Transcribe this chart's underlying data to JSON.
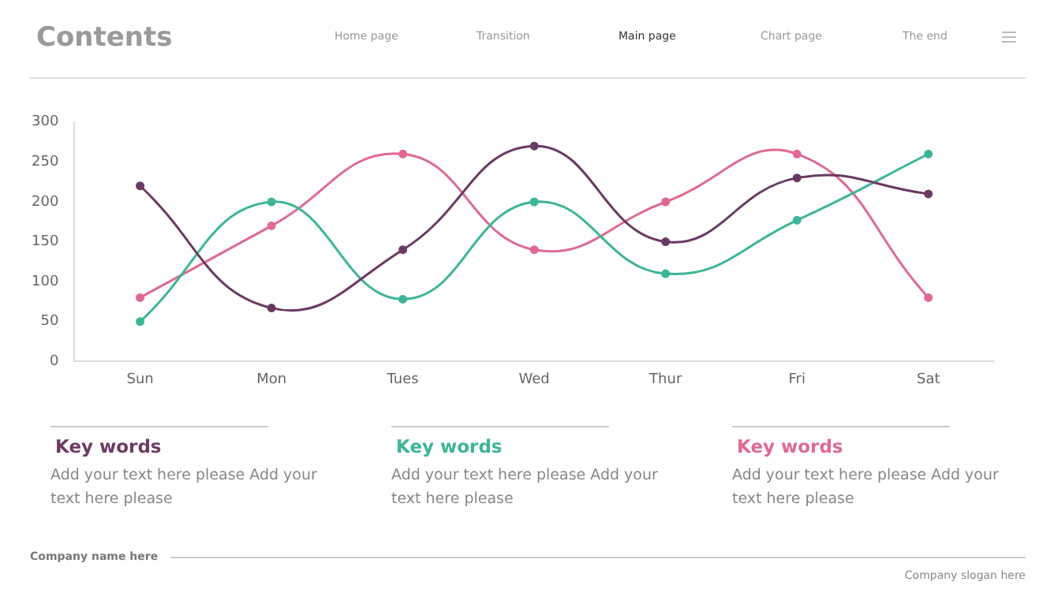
{
  "chart_data": {
    "type": "line",
    "title": "Contents",
    "categories": [
      "Sun",
      "Mon",
      "Tues",
      "Wed",
      "Thur",
      "Fri",
      "Sat"
    ],
    "series": [
      {
        "color": "#6b3a63",
        "values": [
          220,
          67,
          140,
          270,
          150,
          230,
          210
        ]
      },
      {
        "color": "#3db597",
        "values": [
          50,
          200,
          78,
          200,
          110,
          177,
          260
        ]
      },
      {
        "color": "#e06a8e",
        "values": [
          80,
          170,
          260,
          140,
          200,
          260,
          80
        ]
      }
    ],
    "ylim": [
      0,
      300
    ],
    "yticks": [
      0,
      50,
      100,
      150,
      200,
      250,
      300
    ],
    "grid": false,
    "legend": false,
    "marker": "circle",
    "line_style": "solid",
    "annotations": [
      "Home page",
      "Transition",
      "Main page",
      "Chart page",
      "The end",
      "Key words",
      "Add your text here please Add your text here please",
      "Key words",
      "Add your text here please Add your text here please",
      "Key words",
      "Add your text here please Add your text here please",
      "Company name here",
      "Company slogan here"
    ]
  }
}
